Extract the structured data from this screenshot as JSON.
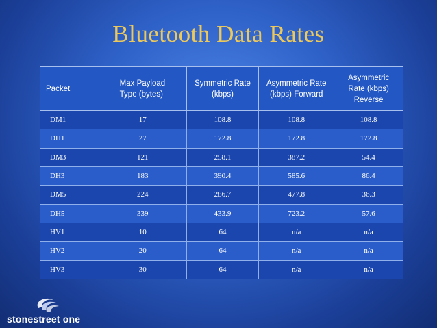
{
  "title": "Bluetooth Data Rates",
  "table": {
    "headers": [
      "Packet",
      "Max Payload\nType     (bytes)",
      "Symmetric Rate\n(kbps)",
      "Asymmetric Rate\n(kbps) Forward",
      "Asymmetric\nRate (kbps)\nReverse"
    ],
    "rows": [
      [
        "DM1",
        "17",
        "108.8",
        "108.8",
        "108.8"
      ],
      [
        "DH1",
        "27",
        "172.8",
        "172.8",
        "172.8"
      ],
      [
        "DM3",
        "121",
        "258.1",
        "387.2",
        "54.4"
      ],
      [
        "DH3",
        "183",
        "390.4",
        "585.6",
        "86.4"
      ],
      [
        "DM5",
        "224",
        "286.7",
        "477.8",
        "36.3"
      ],
      [
        "DH5",
        "339",
        "433.9",
        "723.2",
        "57.6"
      ],
      [
        "HV1",
        "10",
        "64",
        "n/a",
        "n/a"
      ],
      [
        "HV2",
        "20",
        "64",
        "n/a",
        "n/a"
      ],
      [
        "HV3",
        "30",
        "64",
        "n/a",
        "n/a"
      ]
    ]
  },
  "logo": {
    "text": "stonestreet one",
    "icon": "swirl-logo-icon"
  },
  "colors": {
    "title": "#ecc95a",
    "background": "#2f62c9",
    "table_row_dark": "#1a46ad",
    "table_row_light": "#2a5dc9"
  }
}
